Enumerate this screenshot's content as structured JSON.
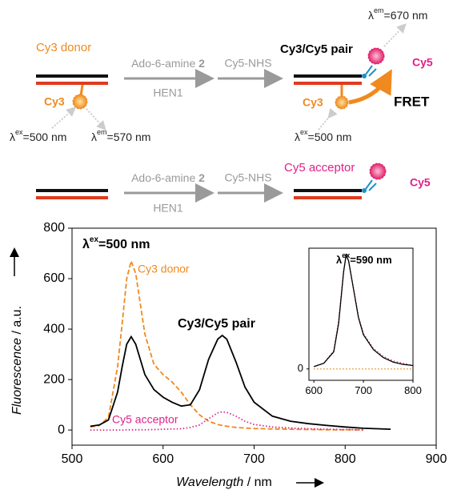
{
  "diagram": {
    "row1": {
      "donor_label": "Cy3 donor",
      "step1_top": [
        "Ado-6-amine ",
        "2"
      ],
      "step1_bottom": "HEN1",
      "step2_top": "Cy5-NHS",
      "dye_left": "Cy3",
      "ex_left": [
        "λ",
        "ex",
        "=500 nm"
      ],
      "em_left": [
        "λ",
        "em",
        "=570 nm"
      ],
      "pair_label": "Cy3/Cy5 pair",
      "dye_right_cy3": "Cy3",
      "dye_right_cy5": "Cy5",
      "fret": "FRET",
      "ex_right": [
        "λ",
        "ex",
        "=500 nm"
      ],
      "em_right": [
        "λ",
        "em",
        "=670 nm"
      ]
    },
    "row2": {
      "step1_top": [
        "Ado-6-amine ",
        "2"
      ],
      "step1_bottom": "HEN1",
      "step2_top": "Cy5-NHS",
      "acceptor_label": "Cy5 acceptor",
      "dye": "Cy5"
    }
  },
  "chart_data": [
    {
      "type": "line",
      "title_parts": [
        "λ",
        "ex",
        "=500 nm"
      ],
      "xlabel": "Wavelength",
      "xunit": " / nm",
      "ylabel": "Fluorescence",
      "yunit": " / a.u.",
      "xlim": [
        500,
        900
      ],
      "ylim": [
        -60,
        800
      ],
      "xticks": [
        500,
        600,
        700,
        800,
        900
      ],
      "yticks": [
        0,
        200,
        400,
        600,
        800
      ],
      "x": [
        520,
        530,
        540,
        550,
        555,
        560,
        565,
        570,
        575,
        580,
        590,
        600,
        610,
        620,
        630,
        640,
        650,
        660,
        665,
        670,
        680,
        690,
        700,
        720,
        740,
        760,
        780,
        800,
        820,
        850
      ],
      "series": [
        {
          "name": "Cy3 donor",
          "color": "#f0891e",
          "dash": "dashed",
          "values": [
            12,
            18,
            50,
            250,
            420,
            600,
            670,
            620,
            500,
            380,
            260,
            220,
            190,
            150,
            100,
            60,
            35,
            22,
            18,
            15,
            10,
            8,
            6,
            4,
            3,
            2,
            1,
            1,
            0,
            null
          ]
        },
        {
          "name": "Cy3/Cy5 pair",
          "color": "#000000",
          "dash": "solid",
          "values": [
            15,
            20,
            40,
            150,
            250,
            340,
            370,
            340,
            280,
            220,
            160,
            130,
            110,
            95,
            100,
            160,
            280,
            360,
            375,
            360,
            270,
            170,
            110,
            55,
            35,
            25,
            18,
            12,
            7,
            3
          ]
        },
        {
          "name": "Cy5 acceptor",
          "color": "#e0218a",
          "dash": "dotted",
          "values": [
            0,
            0,
            0,
            0,
            0,
            1,
            1,
            1,
            1,
            1,
            2,
            3,
            4,
            5,
            10,
            20,
            45,
            68,
            72,
            70,
            55,
            35,
            22,
            12,
            8,
            5,
            3,
            2,
            1,
            null
          ]
        }
      ]
    },
    {
      "type": "line",
      "title_parts": [
        "λ",
        "ex",
        "=590 nm"
      ],
      "xlim": [
        590,
        800
      ],
      "ylim": [
        -0.1,
        1.06
      ],
      "xticks": [
        600,
        700,
        800
      ],
      "yticks": [
        0
      ],
      "x": [
        600,
        620,
        640,
        650,
        660,
        665,
        670,
        680,
        690,
        700,
        720,
        740,
        760,
        780,
        800
      ],
      "series": [
        {
          "color": "#f0891e",
          "dash": "dotted",
          "values": [
            0,
            0,
            0,
            0,
            0,
            0,
            0,
            0,
            0,
            0,
            0,
            0,
            0,
            0,
            0
          ]
        },
        {
          "color": "#e0218a",
          "dash": "dotted",
          "values": [
            0.02,
            0.05,
            0.16,
            0.42,
            0.86,
            0.99,
            0.95,
            0.71,
            0.46,
            0.31,
            0.18,
            0.11,
            0.07,
            0.05,
            0.03
          ]
        },
        {
          "color": "#000000",
          "dash": "solid",
          "values": [
            0.02,
            0.05,
            0.15,
            0.4,
            0.85,
            1.0,
            0.95,
            0.7,
            0.45,
            0.3,
            0.17,
            0.1,
            0.06,
            0.04,
            0.03
          ]
        }
      ]
    }
  ]
}
